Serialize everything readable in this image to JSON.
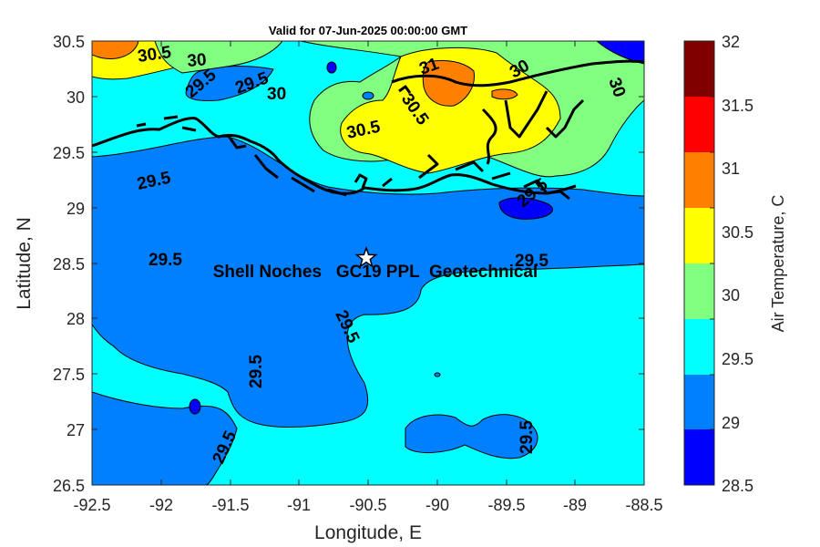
{
  "title": "Valid for 07-Jun-2025 00:00:00 GMT",
  "x_axis": {
    "label": "Longitude, E",
    "ticks": [
      "-92.5",
      "-92",
      "-91.5",
      "-91",
      "-90.5",
      "-90",
      "-89.5",
      "-89",
      "-88.5"
    ],
    "range": [
      -92.5,
      -88.5
    ]
  },
  "y_axis": {
    "label": "Latitude, N",
    "ticks": [
      "30.5",
      "30",
      "29.5",
      "29",
      "28.5",
      "28",
      "27.5",
      "27",
      "26.5"
    ],
    "range": [
      26.5,
      30.5
    ]
  },
  "colorbar": {
    "label": "Air Temperature, C",
    "ticks": [
      "32",
      "31.5",
      "31",
      "30.5",
      "30",
      "29.5",
      "29",
      "28.5"
    ],
    "levels": [
      {
        "from": 28.5,
        "to": 29.0,
        "color": "#0000ff"
      },
      {
        "from": 29.0,
        "to": 29.5,
        "color": "#0080ff"
      },
      {
        "from": 29.5,
        "to": 30.0,
        "color": "#00ffff"
      },
      {
        "from": 30.0,
        "to": 30.5,
        "color": "#80ff80"
      },
      {
        "from": 30.5,
        "to": 31.0,
        "color": "#ffff00"
      },
      {
        "from": 31.0,
        "to": 31.5,
        "color": "#ff8000"
      },
      {
        "from": 31.5,
        "to": 32.0,
        "color": "#ff0000"
      },
      {
        "from": 32.0,
        "to": 32.5,
        "color": "#800000"
      }
    ]
  },
  "contour_labels": [
    "30.5",
    "30",
    "29.5",
    "29.5",
    "30",
    "30.5",
    "30.5",
    "31",
    "30",
    "30",
    "29.5",
    "29.5",
    "29.5",
    "29.5",
    "29.5",
    "29.5",
    "29.5",
    "29.5"
  ],
  "site": {
    "label": "Shell Noches   GC19 PPL  Geotechnical",
    "lon": -90.52,
    "lat": 28.55,
    "marker": "white star"
  },
  "colors": {
    "coastline": "#000000",
    "frame": "#262626"
  }
}
